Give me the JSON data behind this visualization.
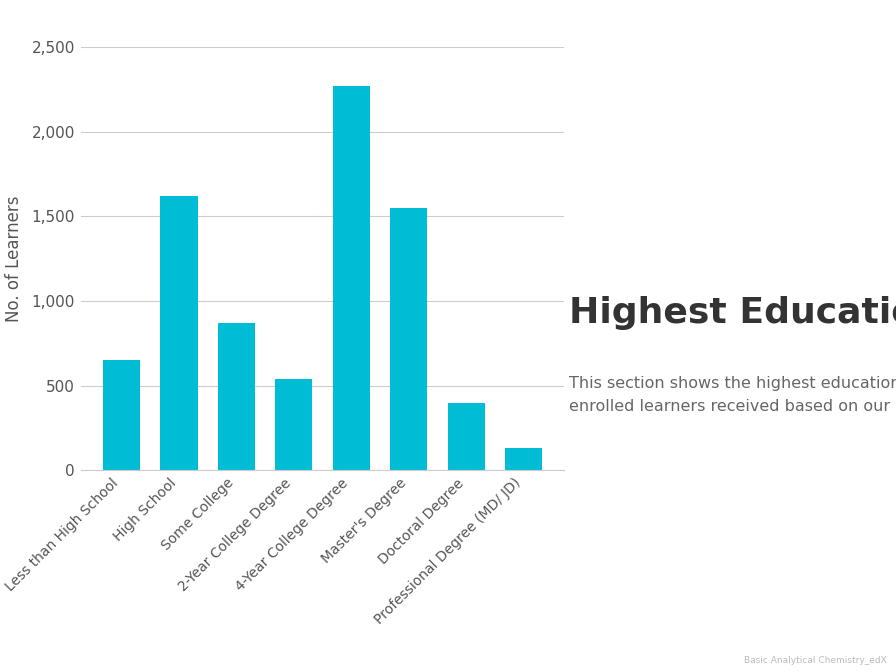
{
  "categories": [
    "Less than High School",
    "High School",
    "Some College",
    "2-Year College Degree",
    "4-Year College Degree",
    "Master's Degree",
    "Doctoral Degree",
    "Professional Degree (MD/ JD)"
  ],
  "values": [
    650,
    1620,
    870,
    540,
    2270,
    1550,
    400,
    130
  ],
  "bar_color": "#00BCD4",
  "ylabel": "No. of Learners",
  "ylim": [
    0,
    2500
  ],
  "yticks": [
    0,
    500,
    1000,
    1500,
    2000,
    2500
  ],
  "background_color": "#ffffff",
  "grid_color": "#cccccc",
  "title": "Highest Education",
  "title_fontsize": 26,
  "title_color": "#333333",
  "subtitle": "This section shows the highest education\nenrolled learners received based on our survey.",
  "subtitle_fontsize": 11.5,
  "subtitle_color": "#666666",
  "watermark": "Basic Analytical Chemistry_edX",
  "watermark_fontsize": 6.5,
  "watermark_color": "#bbbbbb",
  "ylabel_fontsize": 12,
  "ylabel_color": "#555555",
  "tick_fontsize": 10,
  "tick_color": "#555555",
  "ytick_fontsize": 11
}
